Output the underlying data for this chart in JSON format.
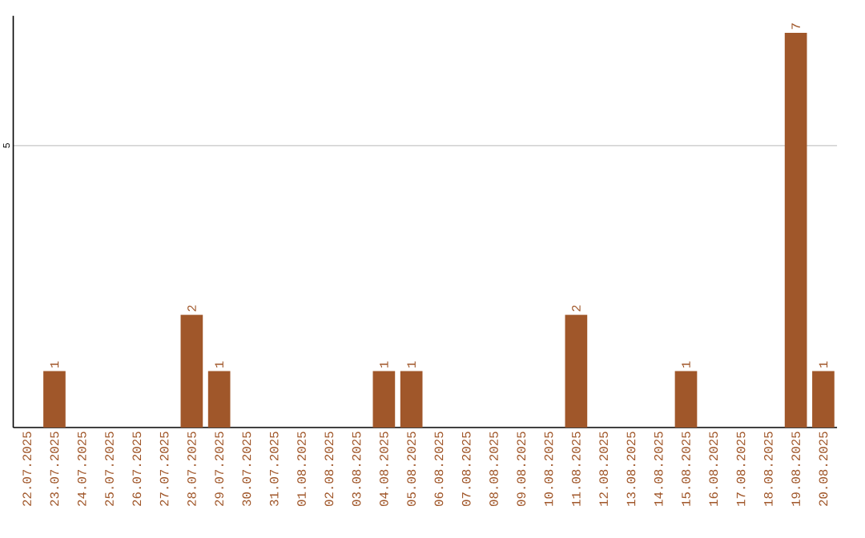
{
  "chart_data": {
    "type": "bar",
    "categories": [
      "22.07.2025",
      "23.07.2025",
      "24.07.2025",
      "25.07.2025",
      "26.07.2025",
      "27.07.2025",
      "28.07.2025",
      "29.07.2025",
      "30.07.2025",
      "31.07.2025",
      "01.08.2025",
      "02.08.2025",
      "03.08.2025",
      "04.08.2025",
      "05.08.2025",
      "06.08.2025",
      "07.08.2025",
      "08.08.2025",
      "09.08.2025",
      "10.08.2025",
      "11.08.2025",
      "12.08.2025",
      "13.08.2025",
      "14.08.2025",
      "15.08.2025",
      "16.08.2025",
      "17.08.2025",
      "18.08.2025",
      "19.08.2025",
      "20.08.2025"
    ],
    "values": [
      0,
      1,
      0,
      0,
      0,
      0,
      2,
      1,
      0,
      0,
      0,
      0,
      0,
      1,
      1,
      0,
      0,
      0,
      0,
      0,
      2,
      0,
      0,
      0,
      1,
      0,
      0,
      0,
      7,
      1
    ],
    "value_labels": [
      null,
      "1",
      null,
      null,
      null,
      null,
      "2",
      "1",
      null,
      null,
      null,
      null,
      null,
      "1",
      "1",
      null,
      null,
      null,
      null,
      null,
      "2",
      null,
      null,
      null,
      "1",
      null,
      null,
      null,
      "7",
      "1"
    ],
    "color": "#a0572a",
    "ylim": [
      0,
      7.3
    ],
    "yticks": [
      5
    ],
    "grid": "y"
  }
}
